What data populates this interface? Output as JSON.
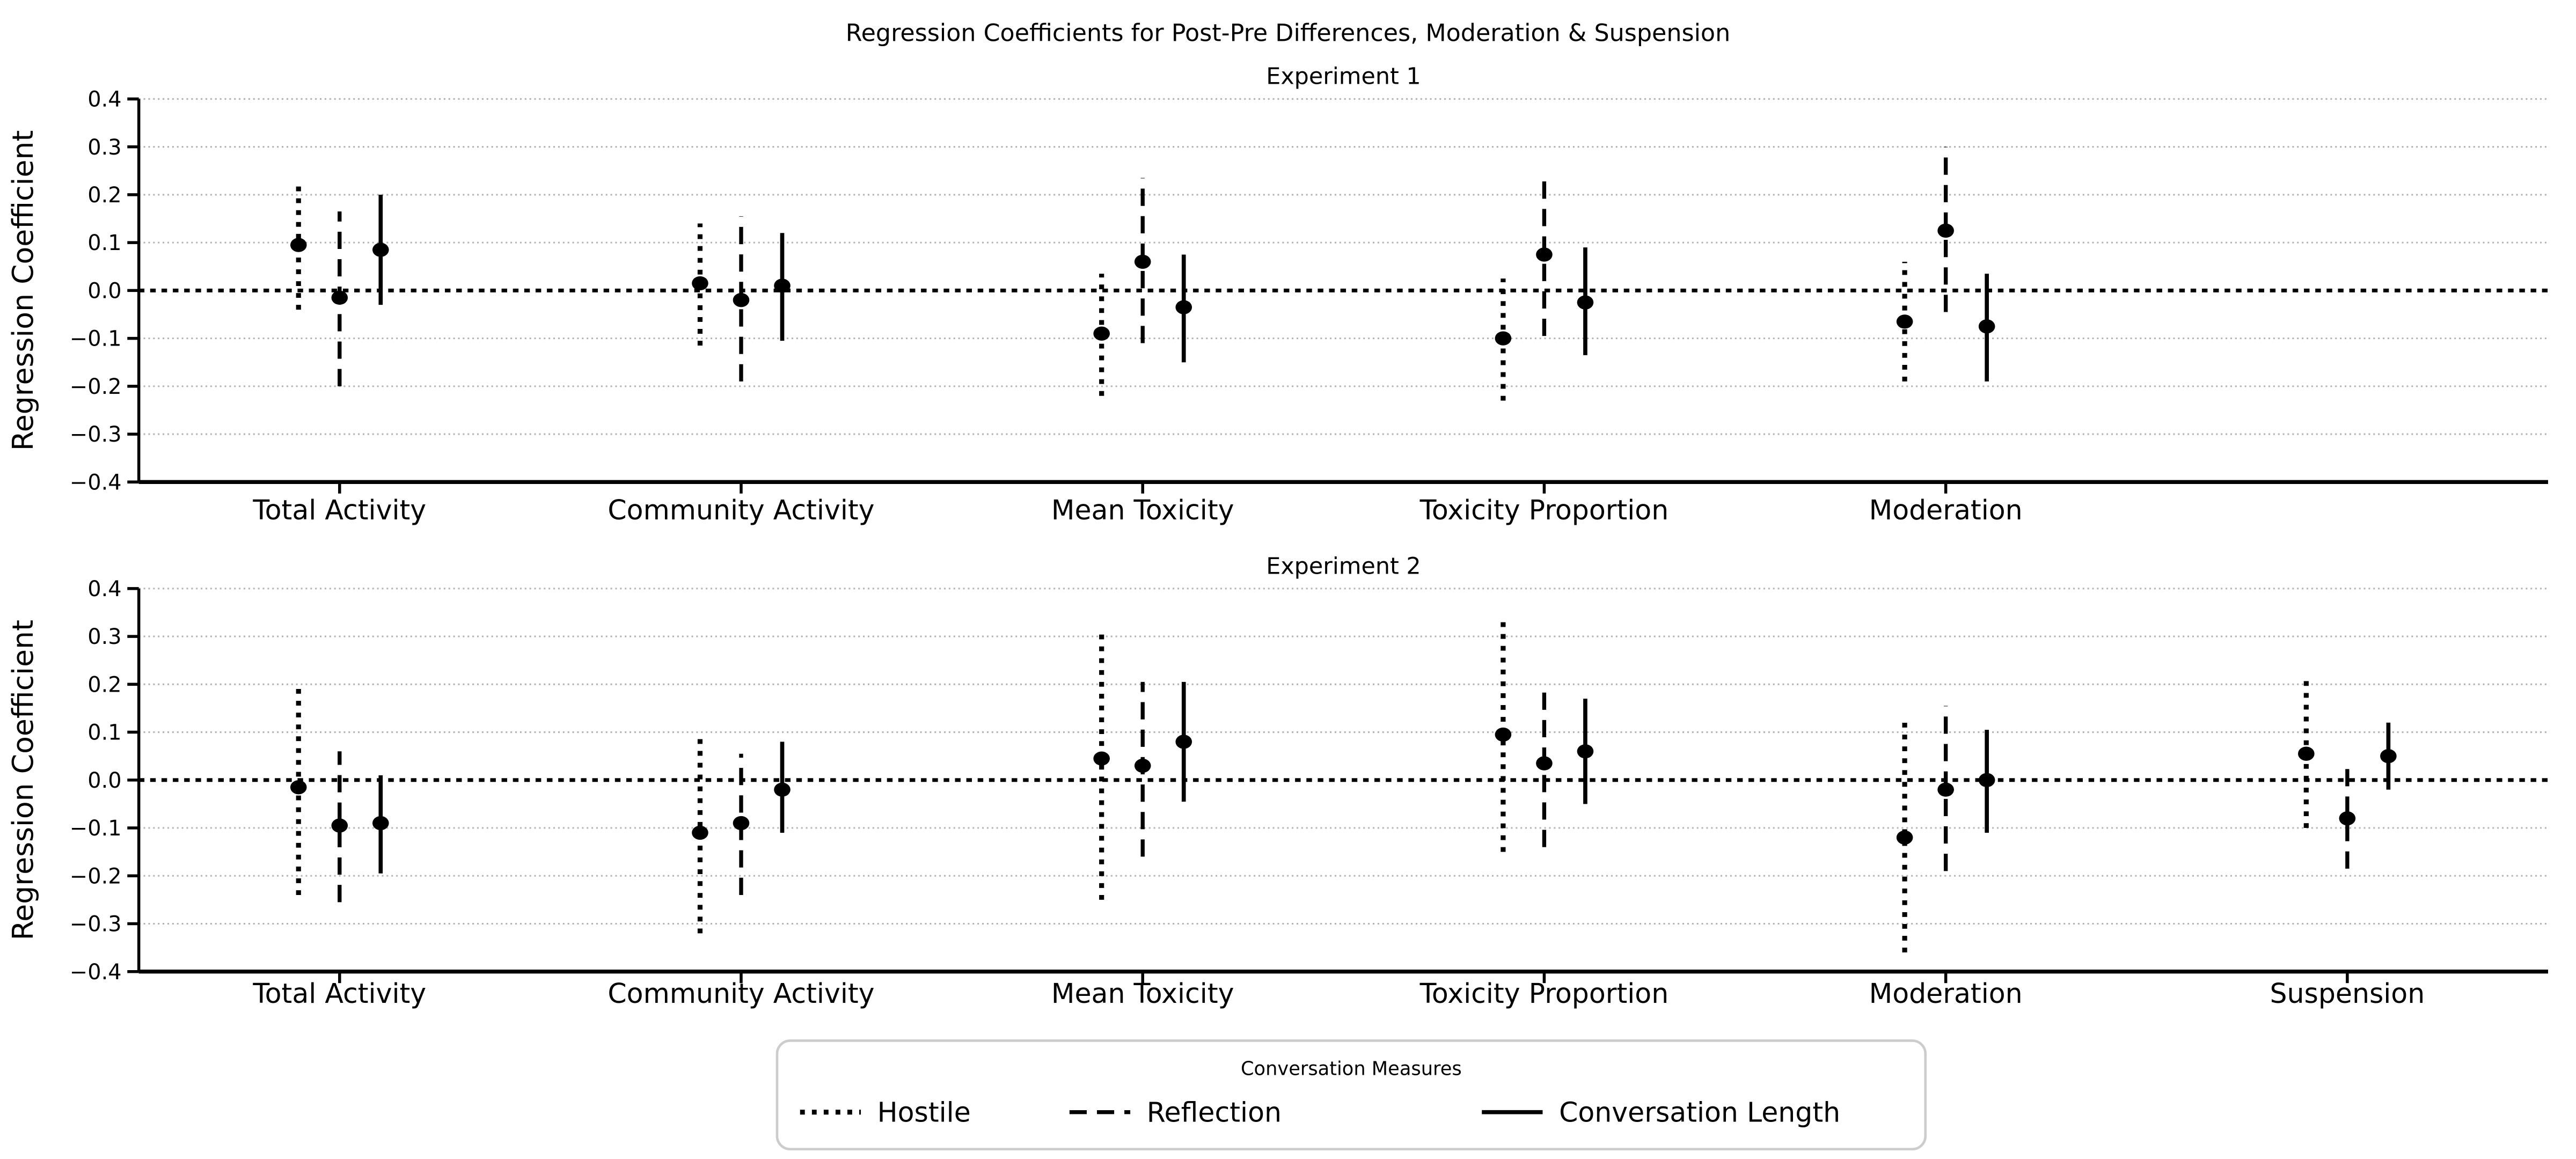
{
  "figure": {
    "title": "Regression Coefficients for Post-Pre Differences, Moderation & Suspension"
  },
  "chart_data": {
    "type": "scatter",
    "title": "Regression Coefficients for Post-Pre Differences, Moderation & Suspension",
    "ylabel": "Regression Coefficient",
    "xlabel": "",
    "ylim": [
      -0.4,
      0.4
    ],
    "yticks": [
      0.4,
      0.3,
      0.2,
      0.1,
      0.0,
      -0.1,
      -0.2,
      -0.3,
      -0.4
    ],
    "ytick_labels": [
      "0.4",
      "0.3",
      "0.2",
      "0.1",
      "0.0",
      "−0.1",
      "−0.2",
      "−0.3",
      "−0.4"
    ],
    "grid": true,
    "gridline_color": "#b3b3b3",
    "zero_reference_line": 0.0,
    "marker_color": "#000000",
    "categories": [
      "Total Activity",
      "Community Activity",
      "Mean Toxicity",
      "Toxicity Proportion",
      "Moderation",
      "Suspension"
    ],
    "legend": {
      "title": "Conversation Measures",
      "position": "bottom-center",
      "entries": [
        {
          "label": "Hostile",
          "linestyle": "dotted"
        },
        {
          "label": "Reflection",
          "linestyle": "dashed"
        },
        {
          "label": "Conversation Length",
          "linestyle": "solid"
        }
      ]
    },
    "panels": [
      {
        "subtitle": "Experiment 1",
        "categories": [
          "Total Activity",
          "Community Activity",
          "Mean Toxicity",
          "Toxicity Proportion",
          "Moderation"
        ],
        "series": [
          {
            "name": "Hostile",
            "linestyle": "dotted",
            "points": [
              {
                "estimate": 0.095,
                "ci_low": -0.04,
                "ci_high": 0.23
              },
              {
                "estimate": 0.015,
                "ci_low": -0.115,
                "ci_high": 0.14
              },
              {
                "estimate": -0.09,
                "ci_low": -0.22,
                "ci_high": 0.035
              },
              {
                "estimate": -0.1,
                "ci_low": -0.23,
                "ci_high": 0.025
              },
              {
                "estimate": -0.065,
                "ci_low": -0.19,
                "ci_high": 0.06
              }
            ]
          },
          {
            "name": "Reflection",
            "linestyle": "dashed",
            "points": [
              {
                "estimate": -0.015,
                "ci_low": -0.2,
                "ci_high": 0.165
              },
              {
                "estimate": -0.02,
                "ci_low": -0.19,
                "ci_high": 0.155
              },
              {
                "estimate": 0.06,
                "ci_low": -0.11,
                "ci_high": 0.235
              },
              {
                "estimate": 0.075,
                "ci_low": -0.095,
                "ci_high": 0.24
              },
              {
                "estimate": 0.125,
                "ci_low": -0.045,
                "ci_high": 0.3
              }
            ]
          },
          {
            "name": "Conversation Length",
            "linestyle": "solid",
            "points": [
              {
                "estimate": 0.085,
                "ci_low": -0.03,
                "ci_high": 0.2
              },
              {
                "estimate": 0.01,
                "ci_low": -0.105,
                "ci_high": 0.12
              },
              {
                "estimate": -0.035,
                "ci_low": -0.15,
                "ci_high": 0.075
              },
              {
                "estimate": -0.025,
                "ci_low": -0.135,
                "ci_high": 0.09
              },
              {
                "estimate": -0.075,
                "ci_low": -0.19,
                "ci_high": 0.035
              }
            ]
          }
        ]
      },
      {
        "subtitle": "Experiment 2",
        "categories": [
          "Total Activity",
          "Community Activity",
          "Mean Toxicity",
          "Toxicity Proportion",
          "Moderation",
          "Suspension"
        ],
        "series": [
          {
            "name": "Hostile",
            "linestyle": "dotted",
            "points": [
              {
                "estimate": -0.015,
                "ci_low": -0.24,
                "ci_high": 0.205
              },
              {
                "estimate": -0.11,
                "ci_low": -0.32,
                "ci_high": 0.1
              },
              {
                "estimate": 0.045,
                "ci_low": -0.25,
                "ci_high": 0.31
              },
              {
                "estimate": 0.095,
                "ci_low": -0.15,
                "ci_high": 0.33
              },
              {
                "estimate": -0.12,
                "ci_low": -0.36,
                "ci_high": 0.12
              },
              {
                "estimate": 0.055,
                "ci_low": -0.1,
                "ci_high": 0.21
              }
            ]
          },
          {
            "name": "Reflection",
            "linestyle": "dashed",
            "points": [
              {
                "estimate": -0.095,
                "ci_low": -0.255,
                "ci_high": 0.06
              },
              {
                "estimate": -0.09,
                "ci_low": -0.24,
                "ci_high": 0.055
              },
              {
                "estimate": 0.03,
                "ci_low": -0.16,
                "ci_high": 0.205
              },
              {
                "estimate": 0.035,
                "ci_low": -0.14,
                "ci_high": 0.195
              },
              {
                "estimate": -0.02,
                "ci_low": -0.19,
                "ci_high": 0.155
              },
              {
                "estimate": -0.08,
                "ci_low": -0.185,
                "ci_high": 0.03
              }
            ]
          },
          {
            "name": "Conversation Length",
            "linestyle": "solid",
            "points": [
              {
                "estimate": -0.09,
                "ci_low": -0.195,
                "ci_high": 0.01
              },
              {
                "estimate": -0.02,
                "ci_low": -0.11,
                "ci_high": 0.08
              },
              {
                "estimate": 0.08,
                "ci_low": -0.045,
                "ci_high": 0.205
              },
              {
                "estimate": 0.06,
                "ci_low": -0.05,
                "ci_high": 0.17
              },
              {
                "estimate": 0.0,
                "ci_low": -0.11,
                "ci_high": 0.105
              },
              {
                "estimate": 0.05,
                "ci_low": -0.02,
                "ci_high": 0.12
              }
            ]
          }
        ]
      }
    ]
  }
}
